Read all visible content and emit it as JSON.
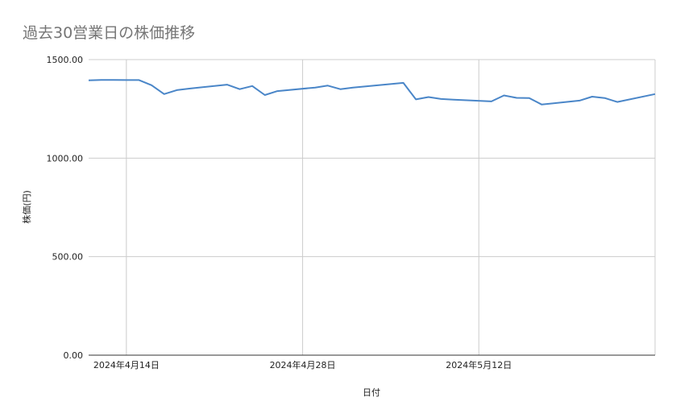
{
  "chart_data": {
    "type": "line",
    "title": "過去30営業日の株価推移",
    "xlabel": "日付",
    "ylabel": "株価(円)",
    "ylim": [
      0,
      1500
    ],
    "yticks": [
      "0.00",
      "500.00",
      "1000.00",
      "1500.00"
    ],
    "xticks": [
      {
        "label": "2024年4月14日",
        "date": "2024-04-14"
      },
      {
        "label": "2024年4月28日",
        "date": "2024-04-28"
      },
      {
        "label": "2024年5月12日",
        "date": "2024-05-12"
      }
    ],
    "xlim": [
      "2024-04-11",
      "2024-05-26"
    ],
    "grid": true,
    "legend": "none",
    "line_color": "#4a86c8",
    "series": [
      {
        "points": [
          {
            "x": "2024-04-11",
            "y": 1395
          },
          {
            "x": "2024-04-12",
            "y": 1397
          },
          {
            "x": "2024-04-13",
            "y": 1397
          },
          {
            "x": "2024-04-14",
            "y": 1396
          },
          {
            "x": "2024-04-15",
            "y": 1396
          },
          {
            "x": "2024-04-16",
            "y": 1370
          },
          {
            "x": "2024-04-17",
            "y": 1325
          },
          {
            "x": "2024-04-18",
            "y": 1345
          },
          {
            "x": "2024-04-19",
            "y": 1353
          },
          {
            "x": "2024-04-22",
            "y": 1373
          },
          {
            "x": "2024-04-23",
            "y": 1350
          },
          {
            "x": "2024-04-24",
            "y": 1366
          },
          {
            "x": "2024-04-25",
            "y": 1320
          },
          {
            "x": "2024-04-26",
            "y": 1340
          },
          {
            "x": "2024-04-29",
            "y": 1358
          },
          {
            "x": "2024-04-30",
            "y": 1368
          },
          {
            "x": "2024-05-01",
            "y": 1350
          },
          {
            "x": "2024-05-02",
            "y": 1358
          },
          {
            "x": "2024-05-06",
            "y": 1382
          },
          {
            "x": "2024-05-07",
            "y": 1298
          },
          {
            "x": "2024-05-08",
            "y": 1310
          },
          {
            "x": "2024-05-09",
            "y": 1300
          },
          {
            "x": "2024-05-10",
            "y": 1297
          },
          {
            "x": "2024-05-13",
            "y": 1288
          },
          {
            "x": "2024-05-14",
            "y": 1318
          },
          {
            "x": "2024-05-15",
            "y": 1306
          },
          {
            "x": "2024-05-16",
            "y": 1305
          },
          {
            "x": "2024-05-17",
            "y": 1272
          },
          {
            "x": "2024-05-20",
            "y": 1292
          },
          {
            "x": "2024-05-21",
            "y": 1312
          },
          {
            "x": "2024-05-22",
            "y": 1305
          },
          {
            "x": "2024-05-23",
            "y": 1285
          },
          {
            "x": "2024-05-26",
            "y": 1325
          }
        ]
      }
    ]
  }
}
